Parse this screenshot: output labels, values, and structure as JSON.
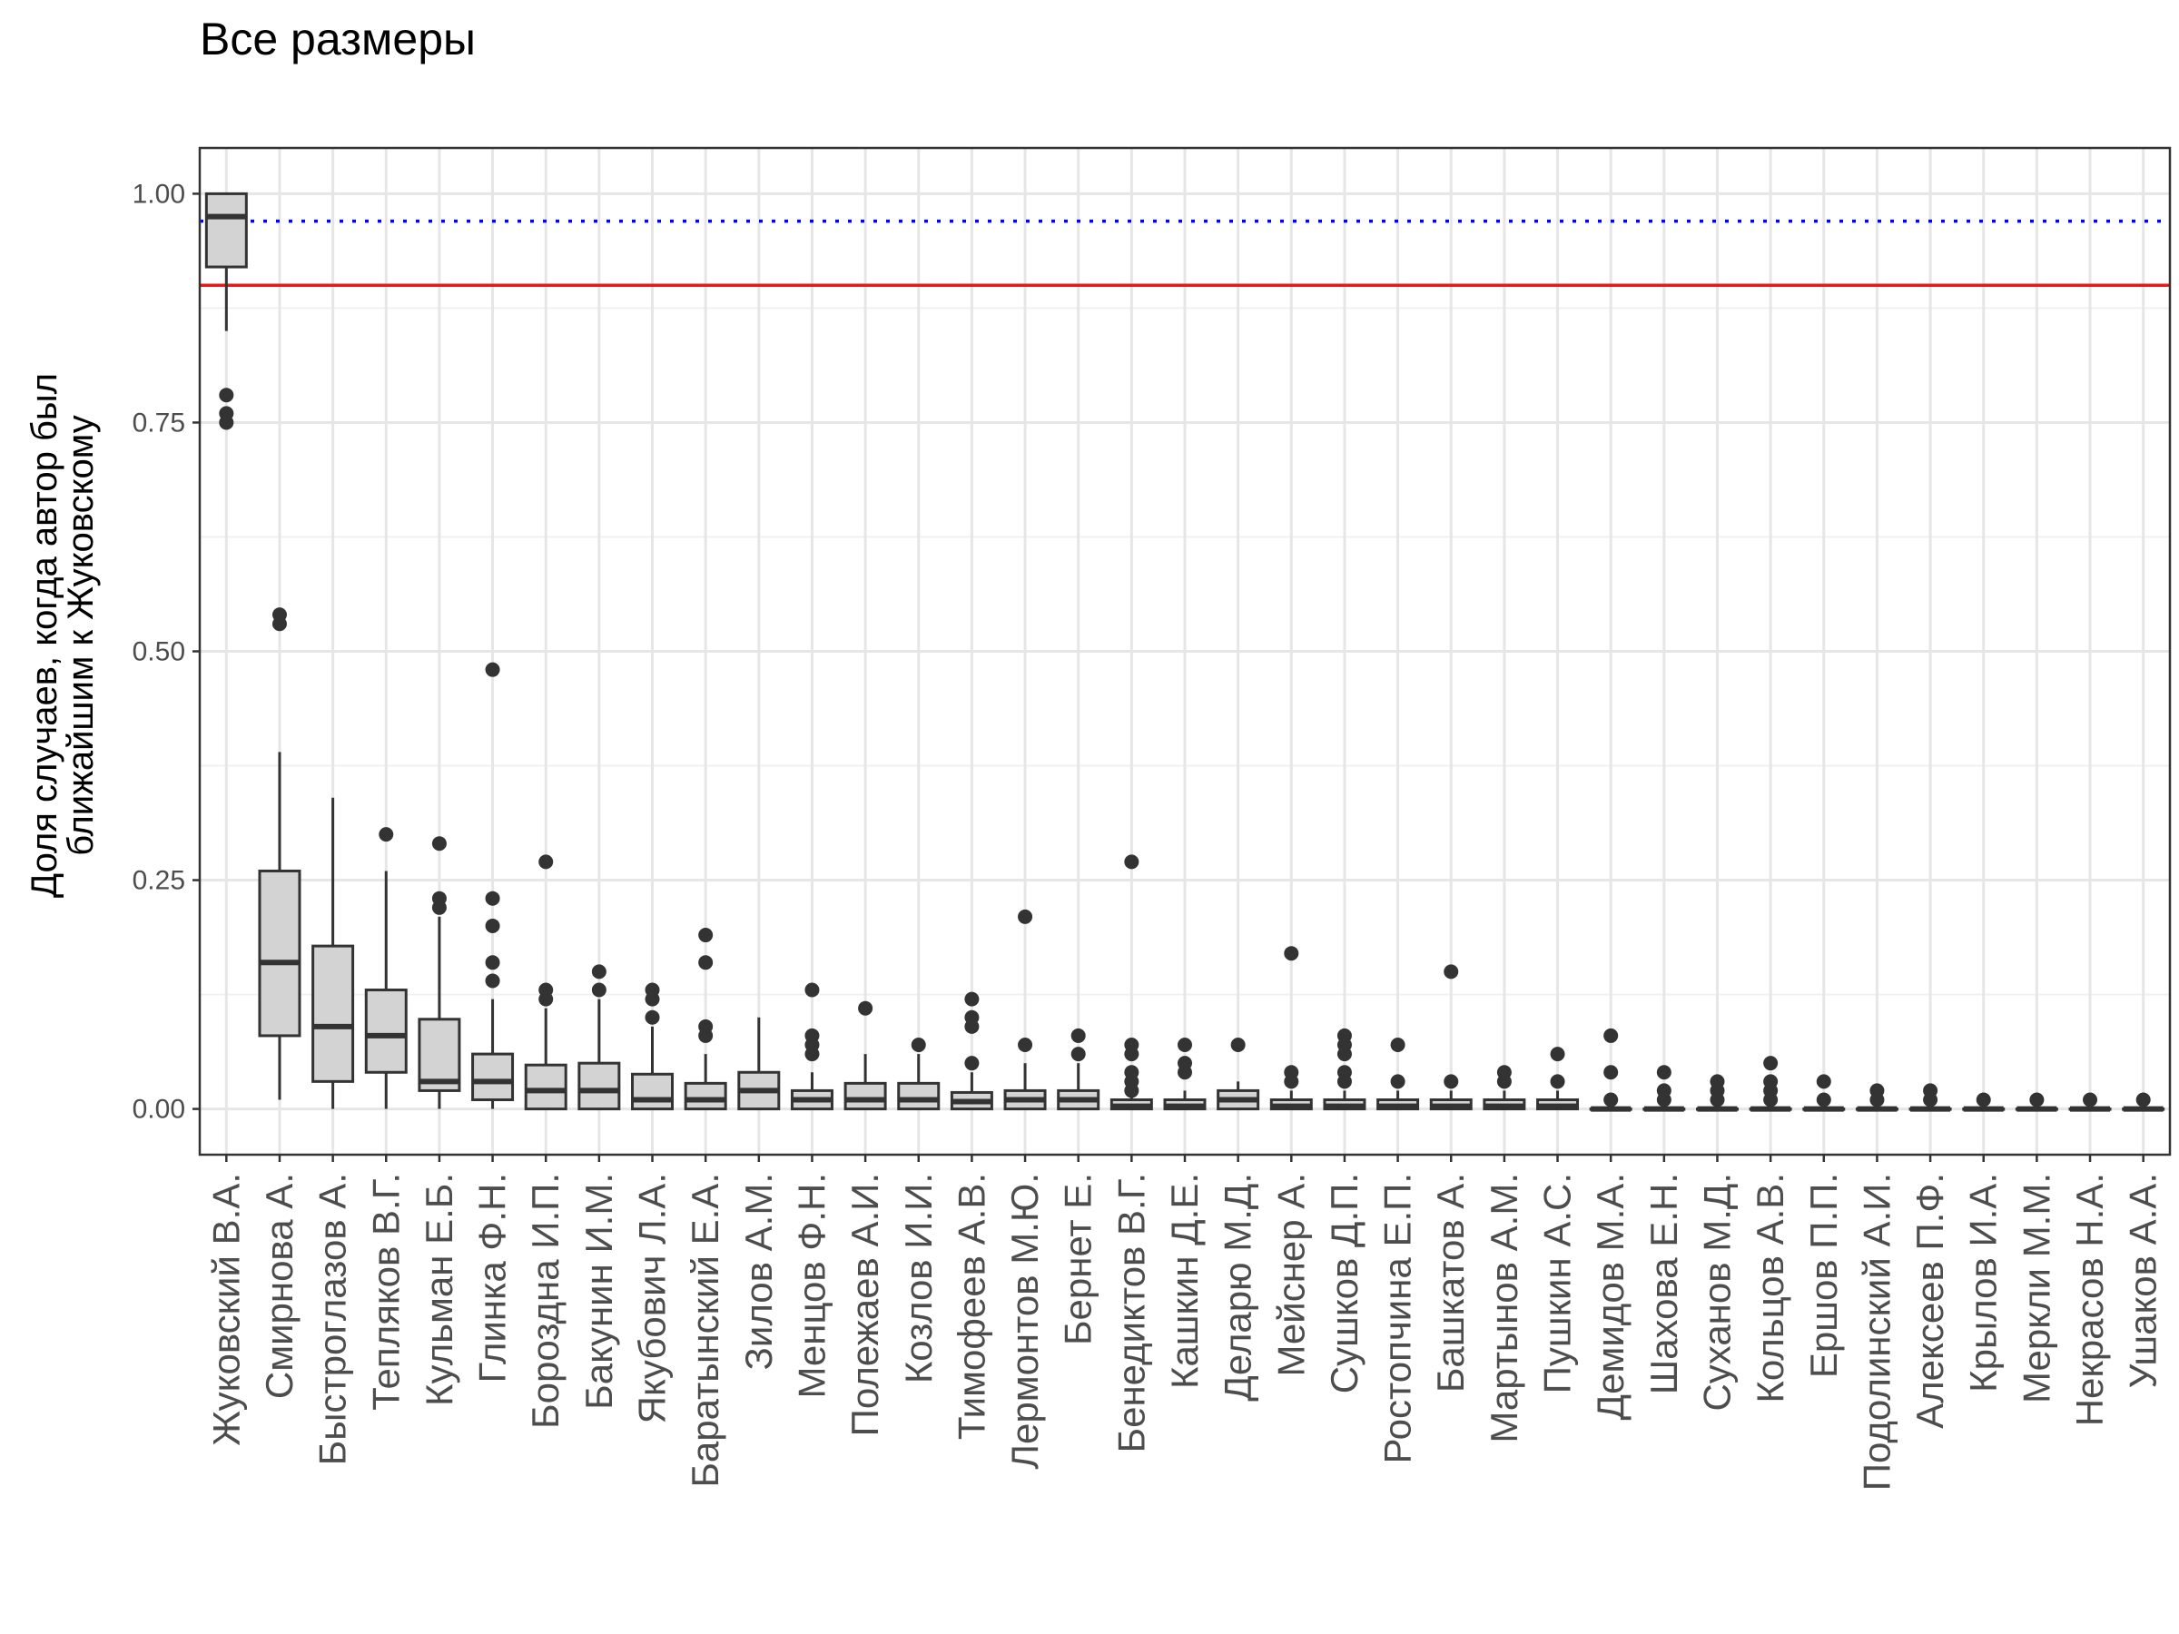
{
  "chart_data": {
    "type": "boxplot",
    "title": "Все размеры",
    "ylabel_lines": [
      "Доля случаев, когда автор был",
      "ближайшим к Жуковскому"
    ],
    "xlabel": "",
    "ylim": [
      -0.05,
      1.05
    ],
    "yticks": [
      0.0,
      0.25,
      0.5,
      0.75,
      1.0
    ],
    "ytick_labels": [
      "0.00",
      "0.25",
      "0.50",
      "0.75",
      "1.00"
    ],
    "grid": true,
    "box_fill": "#d3d3d3",
    "box_stroke": "#333333",
    "reference_lines": [
      {
        "y": 0.9,
        "color": "#e41a1c",
        "style": "solid"
      },
      {
        "y": 0.97,
        "color": "#0000ff",
        "style": "dotted"
      }
    ],
    "categories": [
      "Жуковский В.А.",
      "Смирнова А.",
      "Быстроглазов А.",
      "Тепляков В.Г.",
      "Кульман Е.Б.",
      "Глинка Ф.Н.",
      "Бороздна И.П.",
      "Бакунин И.М.",
      "Якубович Л.А.",
      "Баратынский Е.А.",
      "Зилов А.М.",
      "Менцов Ф.Н.",
      "Полежаев А.И.",
      "Козлов И.И.",
      "Тимофеев А.В.",
      "Лермонтов М.Ю.",
      "Бернет Е.",
      "Бенедиктов В.Г.",
      "Кашкин Д.Е.",
      "Деларю М.Д.",
      "Мейснер А.",
      "Сушков Д.П.",
      "Ростопчина Е.П.",
      "Башкатов А.",
      "Мартынов А.М.",
      "Пушкин А.С.",
      "Демидов М.А.",
      "Шахова Е.Н.",
      "Суханов М.Д.",
      "Кольцов А.В.",
      "Ершов П.П.",
      "Подолинский А.И.",
      "Алексеев П.Ф.",
      "Крылов И.А.",
      "Меркли М.М.",
      "Некрасов Н.А.",
      "Ушаков А.А."
    ],
    "boxes": [
      {
        "min": 0.85,
        "q1": 0.92,
        "median": 0.975,
        "q3": 1.0,
        "max": 1.0,
        "outliers": [
          0.78,
          0.76,
          0.75
        ]
      },
      {
        "min": 0.01,
        "q1": 0.08,
        "median": 0.16,
        "q3": 0.26,
        "max": 0.39,
        "outliers": [
          0.54,
          0.53
        ]
      },
      {
        "min": 0.0,
        "q1": 0.03,
        "median": 0.09,
        "q3": 0.178,
        "max": 0.34,
        "outliers": []
      },
      {
        "min": 0.0,
        "q1": 0.04,
        "median": 0.08,
        "q3": 0.13,
        "max": 0.26,
        "outliers": [
          0.3
        ]
      },
      {
        "min": 0.0,
        "q1": 0.02,
        "median": 0.03,
        "q3": 0.098,
        "max": 0.21,
        "outliers": [
          0.29,
          0.23,
          0.22
        ]
      },
      {
        "min": 0.0,
        "q1": 0.01,
        "median": 0.03,
        "q3": 0.06,
        "max": 0.12,
        "outliers": [
          0.48,
          0.23,
          0.2,
          0.16,
          0.14
        ]
      },
      {
        "min": 0.0,
        "q1": 0.0,
        "median": 0.02,
        "q3": 0.048,
        "max": 0.11,
        "outliers": [
          0.27,
          0.13,
          0.12
        ]
      },
      {
        "min": 0.0,
        "q1": 0.0,
        "median": 0.02,
        "q3": 0.05,
        "max": 0.12,
        "outliers": [
          0.15,
          0.13
        ]
      },
      {
        "min": 0.0,
        "q1": 0.0,
        "median": 0.01,
        "q3": 0.038,
        "max": 0.09,
        "outliers": [
          0.13,
          0.12,
          0.1
        ]
      },
      {
        "min": 0.0,
        "q1": 0.0,
        "median": 0.01,
        "q3": 0.028,
        "max": 0.06,
        "outliers": [
          0.19,
          0.16,
          0.09,
          0.08
        ]
      },
      {
        "min": 0.0,
        "q1": 0.0,
        "median": 0.02,
        "q3": 0.04,
        "max": 0.1,
        "outliers": []
      },
      {
        "min": 0.0,
        "q1": 0.0,
        "median": 0.01,
        "q3": 0.02,
        "max": 0.04,
        "outliers": [
          0.13,
          0.08,
          0.07,
          0.06
        ]
      },
      {
        "min": 0.0,
        "q1": 0.0,
        "median": 0.01,
        "q3": 0.028,
        "max": 0.06,
        "outliers": [
          0.11
        ]
      },
      {
        "min": 0.0,
        "q1": 0.0,
        "median": 0.01,
        "q3": 0.028,
        "max": 0.06,
        "outliers": [
          0.07
        ]
      },
      {
        "min": 0.0,
        "q1": 0.0,
        "median": 0.008,
        "q3": 0.018,
        "max": 0.04,
        "outliers": [
          0.12,
          0.1,
          0.09,
          0.05
        ]
      },
      {
        "min": 0.0,
        "q1": 0.0,
        "median": 0.01,
        "q3": 0.02,
        "max": 0.05,
        "outliers": [
          0.21,
          0.07
        ]
      },
      {
        "min": 0.0,
        "q1": 0.0,
        "median": 0.01,
        "q3": 0.02,
        "max": 0.05,
        "outliers": [
          0.08,
          0.06
        ]
      },
      {
        "min": 0.0,
        "q1": 0.0,
        "median": 0.003,
        "q3": 0.01,
        "max": 0.02,
        "outliers": [
          0.27,
          0.07,
          0.06,
          0.04,
          0.03,
          0.02
        ]
      },
      {
        "min": 0.0,
        "q1": 0.0,
        "median": 0.003,
        "q3": 0.01,
        "max": 0.02,
        "outliers": [
          0.07,
          0.05,
          0.04
        ]
      },
      {
        "min": 0.0,
        "q1": 0.0,
        "median": 0.01,
        "q3": 0.02,
        "max": 0.03,
        "outliers": [
          0.07
        ]
      },
      {
        "min": 0.0,
        "q1": 0.0,
        "median": 0.003,
        "q3": 0.01,
        "max": 0.02,
        "outliers": [
          0.17,
          0.04,
          0.03
        ]
      },
      {
        "min": 0.0,
        "q1": 0.0,
        "median": 0.003,
        "q3": 0.01,
        "max": 0.02,
        "outliers": [
          0.08,
          0.07,
          0.06,
          0.04,
          0.03
        ]
      },
      {
        "min": 0.0,
        "q1": 0.0,
        "median": 0.003,
        "q3": 0.01,
        "max": 0.02,
        "outliers": [
          0.07,
          0.03
        ]
      },
      {
        "min": 0.0,
        "q1": 0.0,
        "median": 0.003,
        "q3": 0.01,
        "max": 0.02,
        "outliers": [
          0.15,
          0.03
        ]
      },
      {
        "min": 0.0,
        "q1": 0.0,
        "median": 0.003,
        "q3": 0.01,
        "max": 0.02,
        "outliers": [
          0.04,
          0.03
        ]
      },
      {
        "min": 0.0,
        "q1": 0.0,
        "median": 0.003,
        "q3": 0.01,
        "max": 0.02,
        "outliers": [
          0.06,
          0.03
        ]
      },
      {
        "min": 0.0,
        "q1": 0.0,
        "median": 0.0,
        "q3": 0.0,
        "max": 0.0,
        "outliers": [
          0.08,
          0.04,
          0.01
        ]
      },
      {
        "min": 0.0,
        "q1": 0.0,
        "median": 0.0,
        "q3": 0.0,
        "max": 0.0,
        "outliers": [
          0.04,
          0.02,
          0.01
        ]
      },
      {
        "min": 0.0,
        "q1": 0.0,
        "median": 0.0,
        "q3": 0.0,
        "max": 0.0,
        "outliers": [
          0.03,
          0.02,
          0.01
        ]
      },
      {
        "min": 0.0,
        "q1": 0.0,
        "median": 0.0,
        "q3": 0.0,
        "max": 0.0,
        "outliers": [
          0.05,
          0.03,
          0.02,
          0.01
        ]
      },
      {
        "min": 0.0,
        "q1": 0.0,
        "median": 0.0,
        "q3": 0.0,
        "max": 0.0,
        "outliers": [
          0.03,
          0.01
        ]
      },
      {
        "min": 0.0,
        "q1": 0.0,
        "median": 0.0,
        "q3": 0.0,
        "max": 0.0,
        "outliers": [
          0.02,
          0.01
        ]
      },
      {
        "min": 0.0,
        "q1": 0.0,
        "median": 0.0,
        "q3": 0.0,
        "max": 0.0,
        "outliers": [
          0.02,
          0.01
        ]
      },
      {
        "min": 0.0,
        "q1": 0.0,
        "median": 0.0,
        "q3": 0.0,
        "max": 0.0,
        "outliers": [
          0.01
        ]
      },
      {
        "min": 0.0,
        "q1": 0.0,
        "median": 0.0,
        "q3": 0.0,
        "max": 0.0,
        "outliers": [
          0.01
        ]
      },
      {
        "min": 0.0,
        "q1": 0.0,
        "median": 0.0,
        "q3": 0.0,
        "max": 0.0,
        "outliers": [
          0.01
        ]
      },
      {
        "min": 0.0,
        "q1": 0.0,
        "median": 0.0,
        "q3": 0.0,
        "max": 0.0,
        "outliers": [
          0.01
        ]
      }
    ]
  }
}
